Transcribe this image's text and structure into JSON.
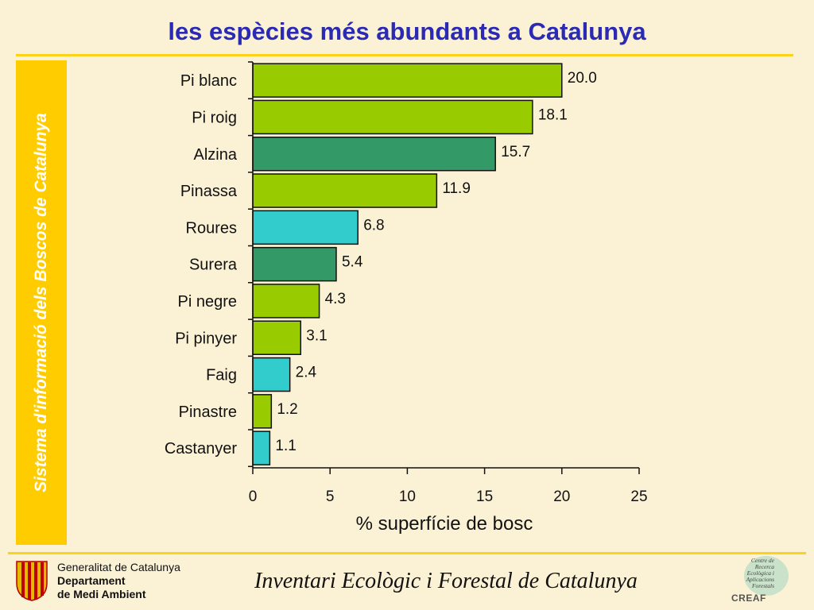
{
  "slide": {
    "title": "les espècies més abundants a Catalunya",
    "side_label": "Sistema d'informació dels Boscos de Catalunya"
  },
  "footer": {
    "org_line1": "Generalitat de Catalunya",
    "org_line2": "Departament",
    "org_line3": "de Medi Ambient",
    "title": "Inventari Ecològic i Forestal de Catalunya",
    "creaf_lines": [
      "Centre de",
      "Recerca",
      "Ecològica i",
      "Aplicacions",
      "Forestals"
    ],
    "creaf_brand": "CREAF"
  },
  "colors": {
    "background": "#fbf1d4",
    "accent_yellow": "#ffcc00",
    "title_blue": "#2a2ab4",
    "bar_lime": "#99cc00",
    "bar_dark_green": "#339966",
    "bar_cyan": "#33cccc"
  },
  "chart_data": {
    "type": "bar",
    "orientation": "horizontal",
    "title": "",
    "xlabel": "% superfície de bosc",
    "ylabel": "",
    "xlim": [
      0,
      25
    ],
    "xticks": [
      0,
      5,
      10,
      15,
      20,
      25
    ],
    "grid": false,
    "categories": [
      "Pi blanc",
      "Pi roig",
      "Alzina",
      "Pinassa",
      "Roures",
      "Surera",
      "Pi negre",
      "Pi pinyer",
      "Faig",
      "Pinastre",
      "Castanyer"
    ],
    "values": [
      20.0,
      18.1,
      15.7,
      11.9,
      6.8,
      5.4,
      4.3,
      3.1,
      2.4,
      1.2,
      1.1
    ],
    "value_labels": [
      "20.0",
      "18.1",
      "15.7",
      "11.9",
      "6.8",
      "5.4",
      "4.3",
      "3.1",
      "2.4",
      "1.2",
      "1.1"
    ],
    "bar_colors": [
      "#99cc00",
      "#99cc00",
      "#339966",
      "#99cc00",
      "#33cccc",
      "#339966",
      "#99cc00",
      "#99cc00",
      "#33cccc",
      "#99cc00",
      "#33cccc"
    ]
  }
}
